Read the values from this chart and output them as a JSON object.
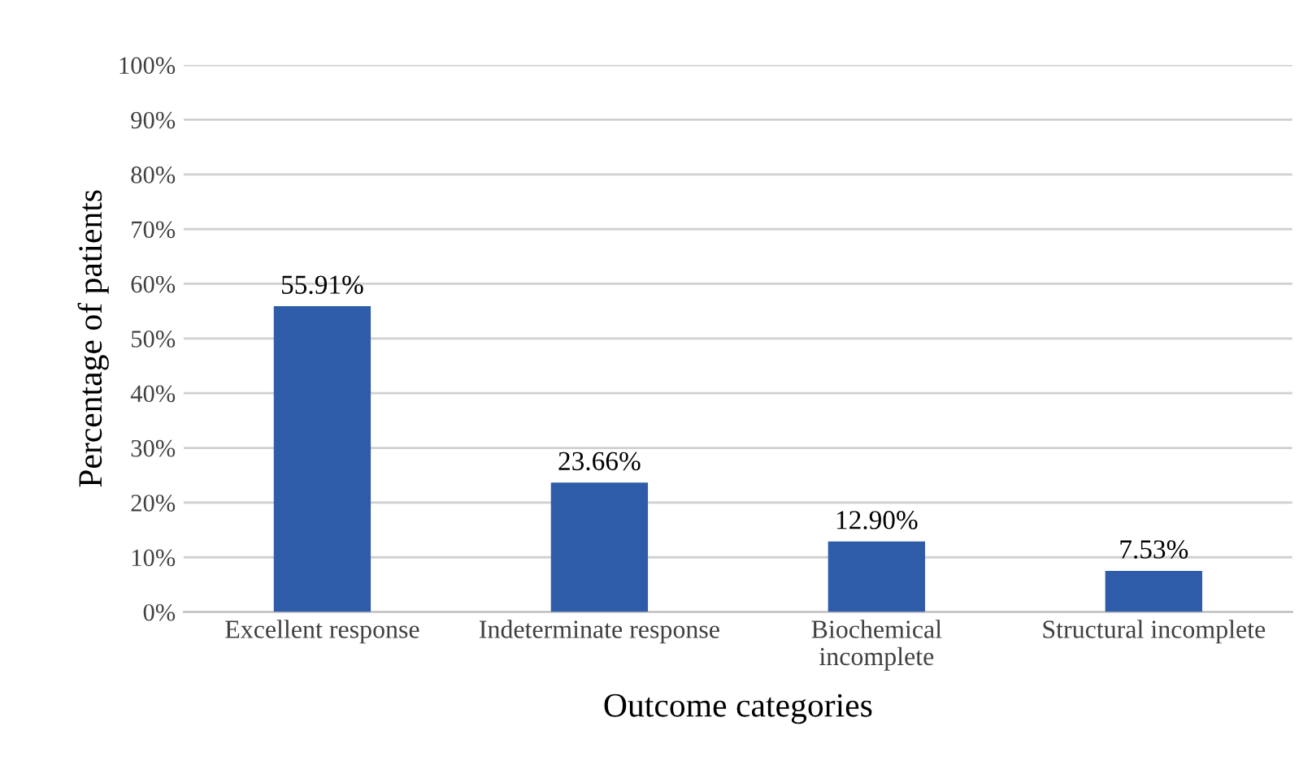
{
  "chart_data": {
    "type": "bar",
    "xlabel": "Outcome categories",
    "ylabel": "Percentage of patients",
    "categories": [
      "Excellent response",
      "Indeterminate response",
      "Biochemical\nincomplete",
      "Structural incomplete"
    ],
    "values": [
      55.91,
      23.66,
      12.9,
      7.53
    ],
    "value_labels": [
      "55.91%",
      "23.66%",
      "12.90%",
      "7.53%"
    ],
    "color": "#2f5ca9",
    "ylim": [
      0,
      100
    ],
    "yticks": [
      {
        "value": 0,
        "label": "0%"
      },
      {
        "value": 10,
        "label": "10%"
      },
      {
        "value": 20,
        "label": "20%"
      },
      {
        "value": 30,
        "label": "30%"
      },
      {
        "value": 40,
        "label": "40%"
      },
      {
        "value": 50,
        "label": "50%"
      },
      {
        "value": 60,
        "label": "60%"
      },
      {
        "value": 70,
        "label": "70%"
      },
      {
        "value": 80,
        "label": "80%"
      },
      {
        "value": 90,
        "label": "90%"
      },
      {
        "value": 100,
        "label": "100%"
      }
    ],
    "grid": "y",
    "legend": false
  }
}
